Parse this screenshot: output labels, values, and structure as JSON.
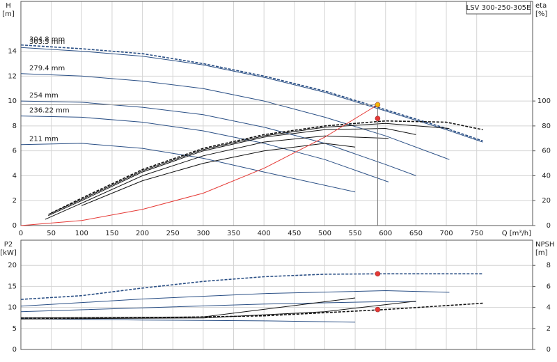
{
  "model": "LSV 300-250-305E",
  "chart_data": [
    {
      "type": "line",
      "y_label": "H",
      "y_unit": "[m]",
      "y2_label": "eta",
      "y2_unit": "[%]",
      "x_label": "Q [m³/h]",
      "xlim": [
        0,
        842
      ],
      "xticks": [
        0,
        50,
        100,
        150,
        200,
        250,
        300,
        350,
        400,
        450,
        500,
        550,
        600,
        650,
        700,
        750
      ],
      "ylim": [
        0,
        18
      ],
      "yticks": [
        0,
        2,
        4,
        6,
        8,
        10,
        12,
        14
      ],
      "y2lim": [
        0,
        180
      ],
      "y2ticks": [
        0,
        20,
        40,
        60,
        80,
        100
      ],
      "grid": true,
      "series": [
        {
          "name": "304.8 mm",
          "color": "#2a4f85",
          "dashed": true,
          "x": [
            0,
            100,
            200,
            300,
            400,
            500,
            600,
            700,
            760
          ],
          "values": [
            14.5,
            14.2,
            13.8,
            13.0,
            12.0,
            10.8,
            9.3,
            7.8,
            6.8
          ]
        },
        {
          "name": "303.5 mm",
          "color": "#2a4f85",
          "x": [
            0,
            100,
            200,
            300,
            400,
            500,
            600,
            700,
            760
          ],
          "values": [
            14.3,
            14.0,
            13.6,
            12.9,
            11.9,
            10.7,
            9.2,
            7.7,
            6.7
          ]
        },
        {
          "name": "279.4 mm",
          "color": "#2a4f85",
          "x": [
            0,
            100,
            200,
            300,
            400,
            500,
            600,
            705
          ],
          "values": [
            12.2,
            12.0,
            11.6,
            11.0,
            10.0,
            8.7,
            7.2,
            5.3
          ]
        },
        {
          "name": "254 mm",
          "color": "#2a4f85",
          "x": [
            0,
            100,
            200,
            300,
            400,
            500,
            600,
            650
          ],
          "values": [
            10.0,
            9.9,
            9.5,
            8.9,
            7.9,
            6.6,
            4.9,
            4.0
          ]
        },
        {
          "name": "236.22 mm",
          "color": "#2a4f85",
          "x": [
            0,
            100,
            200,
            300,
            400,
            500,
            605
          ],
          "values": [
            8.8,
            8.7,
            8.3,
            7.6,
            6.6,
            5.3,
            3.5
          ]
        },
        {
          "name": "211 mm",
          "color": "#2a4f85",
          "x": [
            0,
            100,
            200,
            300,
            400,
            550
          ],
          "values": [
            6.5,
            6.6,
            6.2,
            5.4,
            4.3,
            2.7
          ]
        },
        {
          "axis": "y2",
          "color": "#111",
          "dashed": true,
          "x": [
            50,
            100,
            200,
            300,
            400,
            500,
            600,
            700,
            760
          ],
          "values": [
            10,
            22,
            45,
            62,
            73,
            80,
            84,
            83,
            77
          ]
        },
        {
          "axis": "y2",
          "color": "#111",
          "x": [
            45,
            100,
            200,
            300,
            400,
            500,
            600,
            705
          ],
          "values": [
            9,
            21,
            44,
            61,
            72,
            79,
            82,
            78
          ]
        },
        {
          "axis": "y2",
          "color": "#111",
          "x": [
            45,
            100,
            200,
            300,
            400,
            500,
            600,
            650
          ],
          "values": [
            8,
            20,
            43,
            60,
            71,
            77,
            78,
            73
          ]
        },
        {
          "axis": "y2",
          "color": "#111",
          "x": [
            40,
            100,
            200,
            300,
            400,
            500,
            605
          ],
          "values": [
            5,
            18,
            40,
            56,
            67,
            72,
            70
          ]
        },
        {
          "axis": "y2",
          "color": "#111",
          "x": [
            100,
            200,
            300,
            400,
            500,
            550
          ],
          "values": [
            16,
            36,
            50,
            60,
            66,
            63
          ]
        },
        {
          "color": "#e53935",
          "x": [
            0,
            100,
            200,
            300,
            400,
            500,
            587
          ],
          "values": [
            0,
            0.4,
            1.3,
            2.6,
            4.6,
            7.1,
            9.7
          ]
        }
      ],
      "points": [
        {
          "x": 587,
          "y": 9.7,
          "color": "#f5b800"
        },
        {
          "x": 587,
          "y": 86,
          "axis": "y2",
          "color": "#e53935"
        }
      ]
    },
    {
      "type": "line",
      "y_label": "P2",
      "y_unit": "[kW]",
      "y2_label": "NPSH",
      "y2_unit": "[m]",
      "xlim": [
        0,
        842
      ],
      "xticks": [
        0,
        50,
        100,
        150,
        200,
        250,
        300,
        350,
        400,
        450,
        500,
        550,
        600,
        650,
        700,
        750
      ],
      "ylim": [
        0,
        26
      ],
      "yticks": [
        0,
        5,
        10,
        15,
        20
      ],
      "y2lim": [
        0,
        10.4
      ],
      "y2ticks": [
        0,
        2,
        4,
        6,
        8
      ],
      "grid": true,
      "series": [
        {
          "color": "#2a4f85",
          "dashed": true,
          "x": [
            0,
            100,
            200,
            300,
            400,
            500,
            600,
            700,
            760
          ],
          "values": [
            11.9,
            12.8,
            14.6,
            16.2,
            17.3,
            17.9,
            18.0,
            18.0,
            18.0
          ]
        },
        {
          "color": "#2a4f85",
          "x": [
            0,
            200,
            400,
            600,
            705
          ],
          "values": [
            10.3,
            12.0,
            13.3,
            14.0,
            13.6
          ]
        },
        {
          "color": "#2a4f85",
          "x": [
            0,
            200,
            400,
            600,
            650
          ],
          "values": [
            9.0,
            9.9,
            10.8,
            11.4,
            11.4
          ]
        },
        {
          "color": "#2a4f85",
          "x": [
            0,
            200,
            400,
            550
          ],
          "values": [
            7.3,
            7.0,
            6.8,
            6.5
          ]
        },
        {
          "axis": "y2",
          "color": "#111",
          "dashed": true,
          "x": [
            0,
            200,
            400,
            600,
            760
          ],
          "values": [
            3.0,
            3.0,
            3.2,
            3.8,
            4.4
          ]
        },
        {
          "axis": "y2",
          "color": "#111",
          "x": [
            0,
            300,
            500,
            650
          ],
          "values": [
            2.9,
            3.0,
            3.6,
            4.6
          ]
        },
        {
          "axis": "y2",
          "color": "#111",
          "x": [
            0,
            300,
            550
          ],
          "values": [
            3.0,
            3.1,
            4.9
          ]
        }
      ],
      "points": [
        {
          "x": 587,
          "y": 18.0,
          "color": "#e53935"
        },
        {
          "x": 587,
          "y": 3.8,
          "axis": "y2",
          "color": "#e53935"
        }
      ]
    }
  ]
}
